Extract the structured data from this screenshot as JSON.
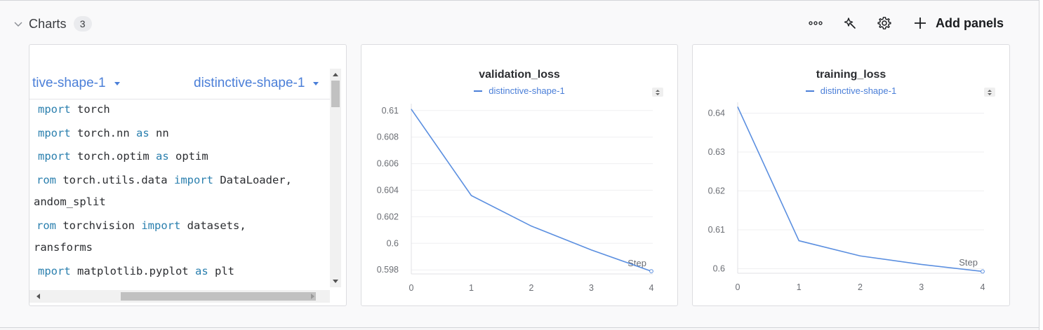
{
  "section": {
    "title": "Charts",
    "count": "3"
  },
  "toolbar": {
    "more_icon": "more-horizontal-icon",
    "magic_icon": "sparkle-wand-icon",
    "settings_icon": "gear-icon",
    "add_panels_label": "Add panels"
  },
  "code_panel": {
    "left_run": "tive-shape-1",
    "right_run": "distinctive-shape-1",
    "lines": [
      [
        {
          "t": "mport",
          "k": true
        },
        {
          "t": " torch"
        }
      ],
      [
        {
          "t": "mport",
          "k": true
        },
        {
          "t": " torch.nn "
        },
        {
          "t": "as",
          "k": true
        },
        {
          "t": " nn"
        }
      ],
      [
        {
          "t": "mport",
          "k": true
        },
        {
          "t": " torch.optim "
        },
        {
          "t": "as",
          "k": true
        },
        {
          "t": " optim"
        }
      ],
      [
        {
          "t": "rom",
          "k": true
        },
        {
          "t": " torch.utils.data "
        },
        {
          "t": "import",
          "k": true
        },
        {
          "t": " DataLoader,"
        }
      ],
      [
        {
          "t": "andom_split"
        }
      ],
      [
        {
          "t": "rom",
          "k": true
        },
        {
          "t": " torchvision "
        },
        {
          "t": "import",
          "k": true
        },
        {
          "t": " datasets,"
        }
      ],
      [
        {
          "t": "ransforms"
        }
      ],
      [
        {
          "t": "mport",
          "k": true
        },
        {
          "t": " matplotlib.pyplot "
        },
        {
          "t": "as",
          "k": true
        },
        {
          "t": " plt"
        }
      ]
    ]
  },
  "chart_data": [
    {
      "type": "line",
      "title": "validation_loss",
      "xlabel": "Step",
      "ylabel": "",
      "x": [
        0,
        1,
        2,
        3,
        4
      ],
      "series": [
        {
          "name": "distinctive-shape-1",
          "values": [
            0.6101,
            0.6036,
            0.6013,
            0.5995,
            0.5979
          ]
        }
      ],
      "xticks": [
        "0",
        "1",
        "2",
        "3",
        "4"
      ],
      "yticks": [
        "0.598",
        "0.6",
        "0.602",
        "0.604",
        "0.606",
        "0.608",
        "0.61"
      ],
      "ylim": [
        0.5978,
        0.6102
      ],
      "grid": true,
      "legend": "top",
      "color": "#5b8fe0"
    },
    {
      "type": "line",
      "title": "training_loss",
      "xlabel": "Step",
      "ylabel": "",
      "x": [
        0,
        1,
        2,
        3,
        4
      ],
      "series": [
        {
          "name": "distinctive-shape-1",
          "values": [
            0.6416,
            0.6072,
            0.6033,
            0.6011,
            0.5993
          ]
        }
      ],
      "xticks": [
        "0",
        "1",
        "2",
        "3",
        "4"
      ],
      "yticks": [
        "0.6",
        "0.61",
        "0.62",
        "0.63",
        "0.64"
      ],
      "ylim": [
        0.5992,
        0.6417
      ],
      "grid": true,
      "legend": "top",
      "color": "#5b8fe0"
    }
  ]
}
